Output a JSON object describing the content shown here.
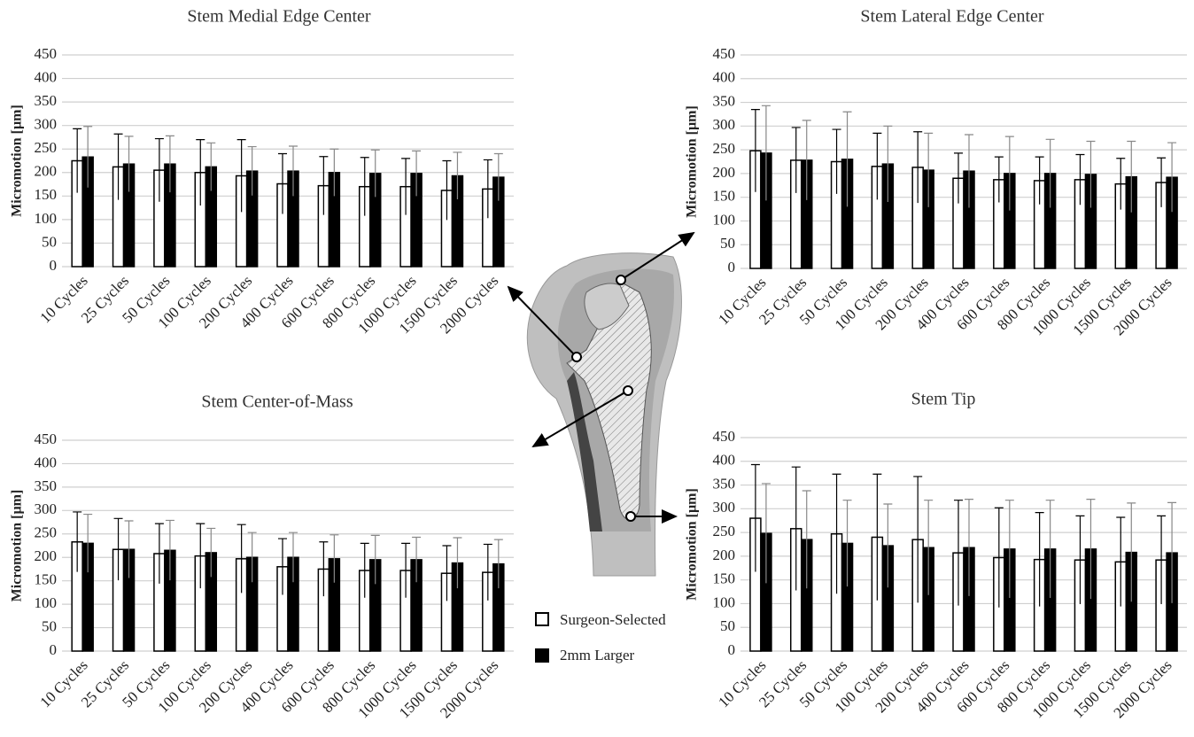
{
  "chart_data": [
    {
      "type": "bar",
      "title": "Stem Medial Edge Center",
      "y_label": "Micromotion  [µm]",
      "categories": [
        "10 Cycles",
        "25 Cycles",
        "50 Cycles",
        "100 Cycles",
        "200 Cycles",
        "400 Cycles",
        "600 Cycles",
        "800 Cycles",
        "1000 Cycles",
        "1500 Cycles",
        "2000 Cycles"
      ],
      "series": [
        {
          "name": "Surgeon-Selected",
          "color": "#ffffff",
          "values": [
            225,
            212,
            205,
            200,
            193,
            176,
            172,
            170,
            170,
            162,
            165
          ],
          "errors": [
            68,
            70,
            67,
            70,
            77,
            64,
            62,
            62,
            60,
            63,
            62
          ]
        },
        {
          "name": "2mm Larger",
          "color": "#000000",
          "values": [
            233,
            218,
            218,
            212,
            203,
            203,
            200,
            198,
            198,
            193,
            190
          ],
          "errors": [
            65,
            59,
            60,
            51,
            52,
            53,
            50,
            50,
            48,
            50,
            50
          ]
        }
      ],
      "ylim": [
        0,
        450
      ],
      "yticks": [
        0,
        50,
        100,
        150,
        200,
        250,
        300,
        350,
        400,
        450
      ],
      "grid": true
    },
    {
      "type": "bar",
      "title": "Stem Lateral Edge Center",
      "y_label": "Micromotion  [µm]",
      "categories": [
        "10 Cycles",
        "25 Cycles",
        "50 Cycles",
        "100 Cycles",
        "200 Cycles",
        "400 Cycles",
        "600 Cycles",
        "800 Cycles",
        "1000 Cycles",
        "1500 Cycles",
        "2000 Cycles"
      ],
      "series": [
        {
          "name": "Surgeon-Selected",
          "color": "#ffffff",
          "values": [
            248,
            228,
            225,
            215,
            213,
            190,
            187,
            185,
            187,
            178,
            181
          ],
          "errors": [
            87,
            69,
            68,
            70,
            75,
            53,
            48,
            50,
            53,
            54,
            52
          ]
        },
        {
          "name": "2mm Larger",
          "color": "#000000",
          "values": [
            243,
            228,
            230,
            220,
            207,
            205,
            200,
            200,
            198,
            193,
            192
          ],
          "errors": [
            100,
            84,
            100,
            80,
            78,
            77,
            78,
            72,
            70,
            75,
            73
          ]
        }
      ],
      "ylim": [
        0,
        450
      ],
      "yticks": [
        0,
        50,
        100,
        150,
        200,
        250,
        300,
        350,
        400,
        450
      ],
      "grid": true
    },
    {
      "type": "bar",
      "title": "Stem Center-of-Mass",
      "y_label": "Micromotion  [µm]",
      "categories": [
        "10 Cycles",
        "25 Cycles",
        "50 Cycles",
        "100 Cycles",
        "200 Cycles",
        "400 Cycles",
        "600 Cycles",
        "800 Cycles",
        "1000 Cycles",
        "1500 Cycles",
        "2000 Cycles"
      ],
      "series": [
        {
          "name": "Surgeon-Selected",
          "color": "#ffffff",
          "values": [
            233,
            217,
            208,
            203,
            197,
            180,
            175,
            172,
            172,
            166,
            168
          ],
          "errors": [
            64,
            66,
            64,
            69,
            73,
            60,
            58,
            58,
            58,
            59,
            60
          ]
        },
        {
          "name": "2mm Larger",
          "color": "#000000",
          "values": [
            230,
            217,
            215,
            210,
            200,
            200,
            197,
            195,
            195,
            188,
            186
          ],
          "errors": [
            62,
            61,
            64,
            52,
            53,
            53,
            51,
            52,
            48,
            54,
            52
          ]
        }
      ],
      "ylim": [
        0,
        450
      ],
      "yticks": [
        0,
        50,
        100,
        150,
        200,
        250,
        300,
        350,
        400,
        450
      ],
      "grid": true
    },
    {
      "type": "bar",
      "title": "Stem Tip",
      "y_label": "Micromotion  [µm]",
      "categories": [
        "10 Cycles",
        "25 Cycles",
        "50 Cycles",
        "100 Cycles",
        "200 Cycles",
        "400 Cycles",
        "600 Cycles",
        "800 Cycles",
        "1000 Cycles",
        "1500 Cycles",
        "2000 Cycles"
      ],
      "series": [
        {
          "name": "Surgeon-Selected",
          "color": "#ffffff",
          "values": [
            280,
            258,
            247,
            240,
            235,
            207,
            197,
            193,
            192,
            188,
            192
          ],
          "errors": [
            113,
            130,
            126,
            133,
            133,
            111,
            105,
            99,
            93,
            94,
            93
          ]
        },
        {
          "name": "2mm Larger",
          "color": "#000000",
          "values": [
            248,
            235,
            227,
            222,
            218,
            218,
            215,
            215,
            215,
            208,
            207
          ],
          "errors": [
            105,
            103,
            91,
            88,
            100,
            102,
            103,
            103,
            105,
            104,
            106
          ]
        }
      ],
      "ylim": [
        0,
        450
      ],
      "yticks": [
        0,
        50,
        100,
        150,
        200,
        250,
        300,
        350,
        400,
        450
      ],
      "grid": true
    }
  ]
}
